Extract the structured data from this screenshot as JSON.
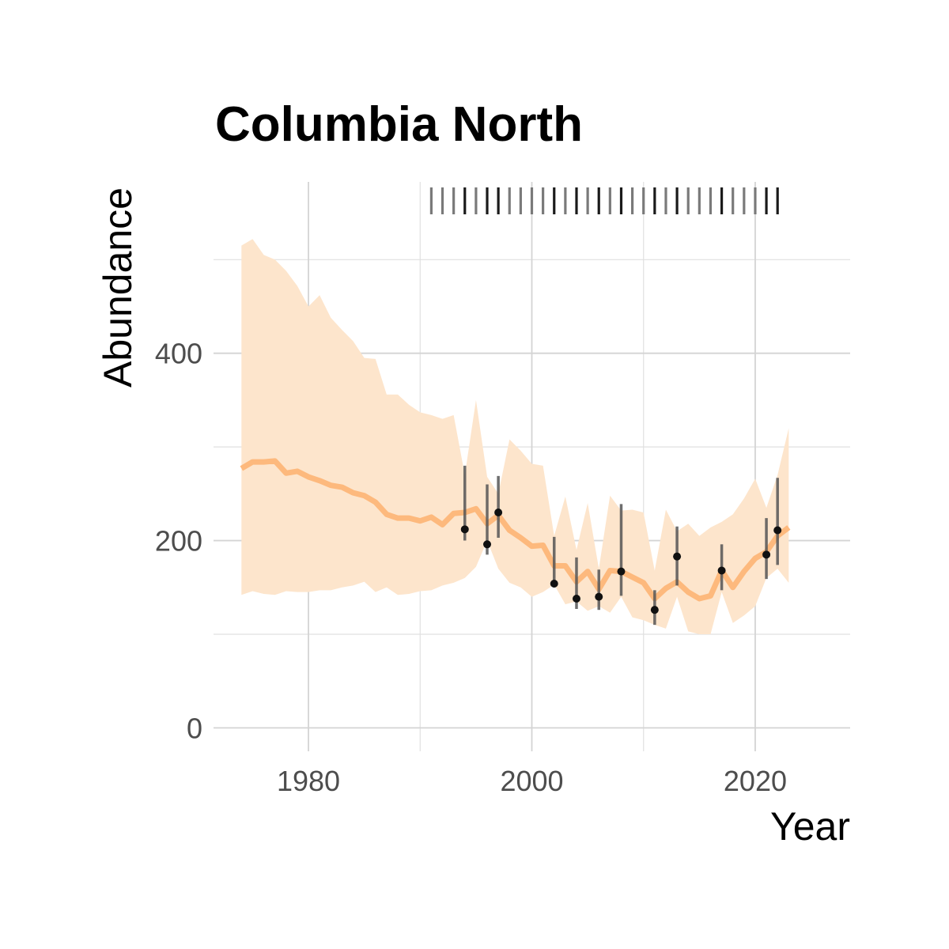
{
  "chart_data": {
    "type": "line",
    "title": "Columbia North",
    "x_label": "Year",
    "y_label": "Abundance",
    "x": [
      1974,
      1975,
      1976,
      1977,
      1978,
      1979,
      1980,
      1981,
      1982,
      1983,
      1984,
      1985,
      1986,
      1987,
      1988,
      1989,
      1990,
      1991,
      1992,
      1993,
      1994,
      1995,
      1996,
      1997,
      1998,
      1999,
      2000,
      2001,
      2002,
      2003,
      2004,
      2005,
      2006,
      2007,
      2008,
      2009,
      2010,
      2011,
      2012,
      2013,
      2014,
      2015,
      2016,
      2017,
      2018,
      2019,
      2020,
      2021,
      2022,
      2023
    ],
    "estimate": {
      "color": "#fdb97d",
      "values": [
        277,
        284,
        284,
        285,
        272,
        274,
        268,
        264,
        259,
        257,
        251,
        248,
        241,
        228,
        224,
        224,
        221,
        225,
        217,
        229,
        230,
        234,
        218,
        227,
        211,
        203,
        194,
        195,
        173,
        173,
        156,
        167,
        148,
        168,
        167,
        161,
        155,
        138,
        149,
        156,
        145,
        138,
        141,
        168,
        150,
        167,
        181,
        188,
        205,
        214
      ]
    },
    "band": {
      "color": "#fde5cc",
      "upper": [
        515,
        522,
        505,
        500,
        488,
        472,
        450,
        462,
        438,
        425,
        413,
        395,
        394,
        356,
        356,
        345,
        337,
        334,
        330,
        334,
        270,
        350,
        268,
        250,
        308,
        296,
        282,
        280,
        205,
        247,
        190,
        240,
        170,
        248,
        232,
        233,
        230,
        168,
        233,
        210,
        218,
        205,
        214,
        220,
        228,
        245,
        266,
        235,
        270,
        320
      ],
      "lower": [
        142,
        146,
        143,
        142,
        146,
        145,
        145,
        147,
        147,
        150,
        152,
        156,
        145,
        150,
        142,
        143,
        146,
        147,
        152,
        155,
        160,
        172,
        200,
        170,
        155,
        150,
        140,
        145,
        153,
        132,
        135,
        125,
        130,
        123,
        140,
        118,
        115,
        110,
        106,
        140,
        103,
        100,
        100,
        145,
        112,
        120,
        130,
        160,
        170,
        155
      ]
    },
    "observations": {
      "color": "#111111",
      "x": [
        1994,
        1996,
        1997,
        2002,
        2004,
        2006,
        2008,
        2011,
        2013,
        2017,
        2021,
        2022
      ],
      "values": [
        212,
        196,
        230,
        154,
        138,
        140,
        167,
        126,
        183,
        168,
        185,
        211
      ],
      "lower": [
        200,
        185,
        203,
        150,
        127,
        126,
        141,
        110,
        152,
        147,
        159,
        174
      ],
      "upper": [
        280,
        260,
        269,
        204,
        182,
        169,
        239,
        147,
        215,
        196,
        224,
        267
      ]
    },
    "rug": {
      "x": [
        1991,
        1992,
        1993,
        1994,
        1995,
        1996,
        1997,
        1998,
        1999,
        2000,
        2001,
        2002,
        2003,
        2004,
        2005,
        2006,
        2007,
        2008,
        2009,
        2010,
        2011,
        2012,
        2013,
        2014,
        2015,
        2016,
        2017,
        2018,
        2019,
        2020,
        2021,
        2022
      ]
    },
    "xlim": [
      1971.5,
      2028.5
    ],
    "ylim": [
      -25,
      583
    ],
    "xticks": [
      1980,
      2000,
      2020
    ],
    "yticks": [
      0,
      200,
      400
    ],
    "minor_xgrid": [
      1990,
      2010
    ],
    "minor_ygrid": [
      100,
      300,
      500
    ],
    "grid": true
  }
}
